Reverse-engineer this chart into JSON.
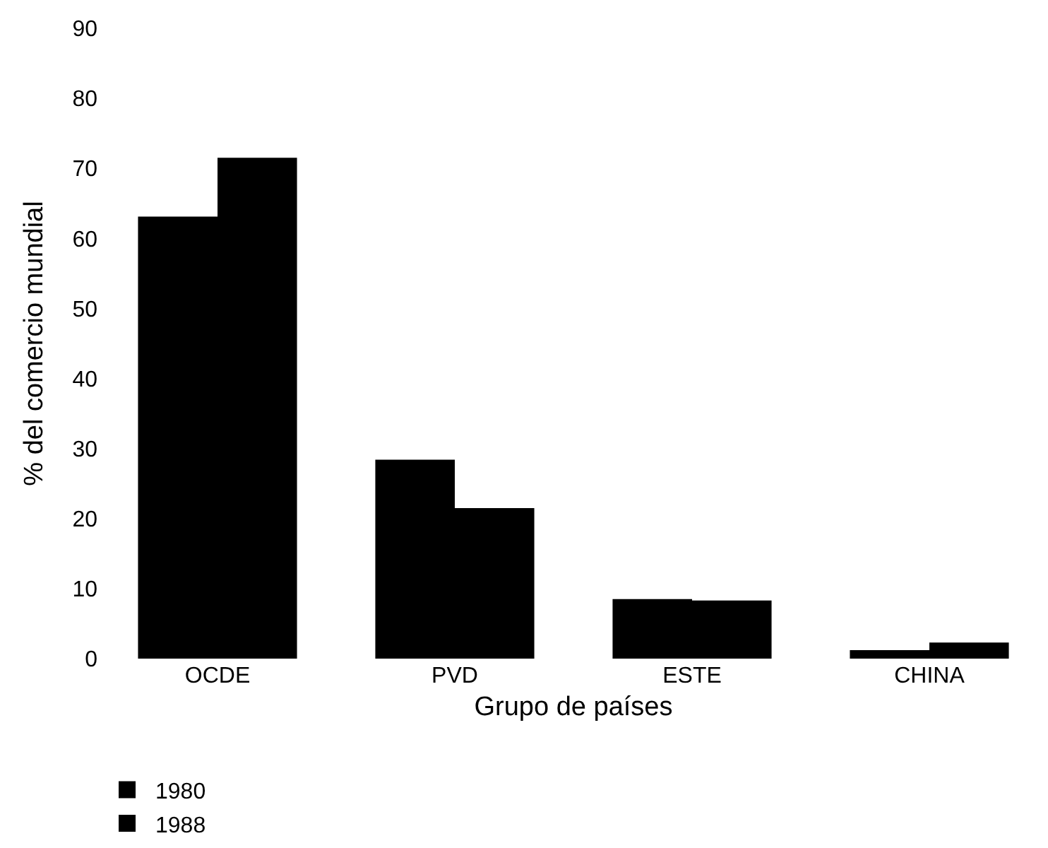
{
  "chart_data": {
    "type": "bar",
    "xlabel": "Grupo de países",
    "ylabel": "% del comercio mundial",
    "categories": [
      "OCDE",
      "PVD",
      "ESTE",
      "CHINA"
    ],
    "series": [
      {
        "name": "1980",
        "color": "#000000",
        "values": [
          63.1,
          28.4,
          8.5,
          1.2
        ]
      },
      {
        "name": "1988",
        "color": "#000000",
        "values": [
          71.5,
          21.5,
          8.3,
          2.3
        ]
      }
    ],
    "ylim": [
      0,
      90
    ],
    "yticks": [
      0,
      10,
      20,
      30,
      40,
      50,
      60,
      70,
      80,
      90
    ],
    "grid": false,
    "legend": "bottom"
  }
}
